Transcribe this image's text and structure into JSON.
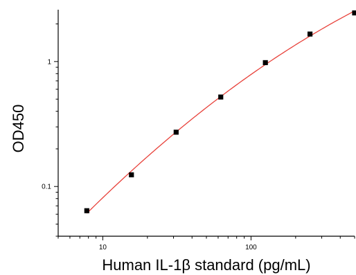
{
  "chart_data": {
    "type": "scatter",
    "title": "",
    "xlabel": "Human IL-1β standard (pg/mL)",
    "ylabel": "OD450",
    "x_scale": "log",
    "y_scale": "log",
    "xlim": [
      5,
      500
    ],
    "ylim": [
      0.04,
      2.6
    ],
    "x_ticks": [
      10,
      100
    ],
    "x_tick_labels": [
      "10",
      "100"
    ],
    "y_ticks": [
      0.1,
      1
    ],
    "y_tick_labels": [
      "0.1",
      "1"
    ],
    "grid": false,
    "legend": "none",
    "colors": {
      "points": "#000000",
      "fit": "#e8413a"
    },
    "series": [
      {
        "name": "",
        "marker": "square",
        "x": [
          7.8,
          15.6,
          31.25,
          62.5,
          125,
          250,
          500
        ],
        "y": [
          0.064,
          0.124,
          0.272,
          0.52,
          0.98,
          1.66,
          2.45
        ]
      }
    ]
  }
}
